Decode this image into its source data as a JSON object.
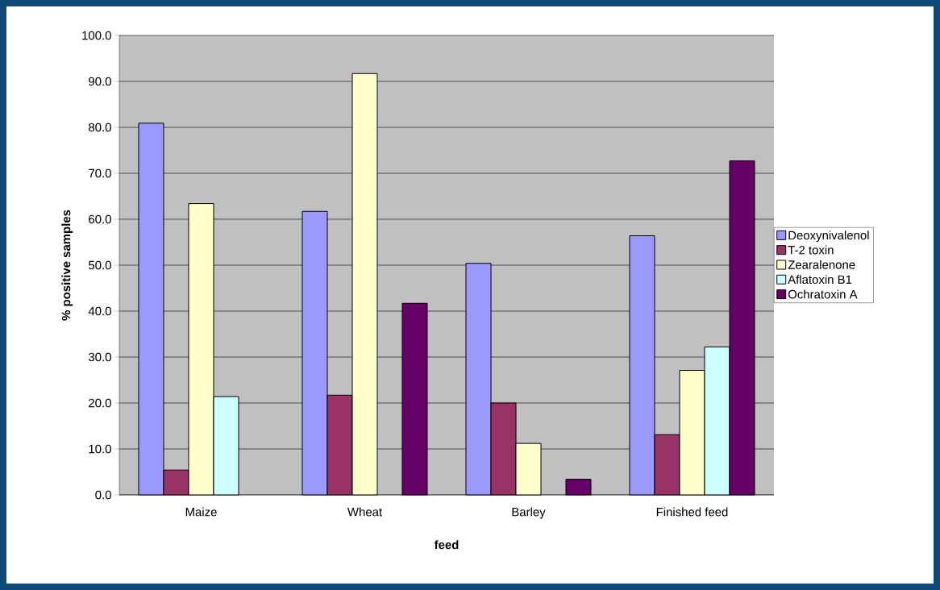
{
  "chart_data": {
    "type": "bar",
    "xlabel": "feed",
    "ylabel": "% positive samples",
    "categories": [
      "Maize",
      "Wheat",
      "Barley",
      "Finished feed"
    ],
    "series": [
      {
        "name": "Deoxynivalenol",
        "color": "#9999ff",
        "values": [
          80.9,
          61.7,
          50.4,
          56.4
        ]
      },
      {
        "name": "T-2 toxin",
        "color": "#993366",
        "values": [
          5.4,
          21.7,
          20.0,
          13.1
        ]
      },
      {
        "name": "Zearalenone",
        "color": "#ffffcc",
        "values": [
          63.4,
          91.7,
          11.2,
          27.1
        ]
      },
      {
        "name": "Aflatoxin B1",
        "color": "#ccffff",
        "values": [
          21.4,
          null,
          null,
          32.2
        ]
      },
      {
        "name": "Ochratoxin A",
        "color": "#660066",
        "values": [
          null,
          41.7,
          3.4,
          72.7
        ]
      }
    ],
    "ylim": [
      0,
      100
    ],
    "yticks": [
      {
        "value": 0,
        "label": "0.0"
      },
      {
        "value": 10,
        "label": "10.0"
      },
      {
        "value": 20,
        "label": "20.0"
      },
      {
        "value": 30,
        "label": "30.0"
      },
      {
        "value": 40,
        "label": "40.0"
      },
      {
        "value": 50,
        "label": "50.0"
      },
      {
        "value": 60,
        "label": "60.0"
      },
      {
        "value": 70,
        "label": "70.0"
      },
      {
        "value": 80,
        "label": "80.0"
      },
      {
        "value": 90,
        "label": "90.0"
      },
      {
        "value": 100,
        "label": "100.0"
      }
    ],
    "grid": "y",
    "legend": "right"
  }
}
